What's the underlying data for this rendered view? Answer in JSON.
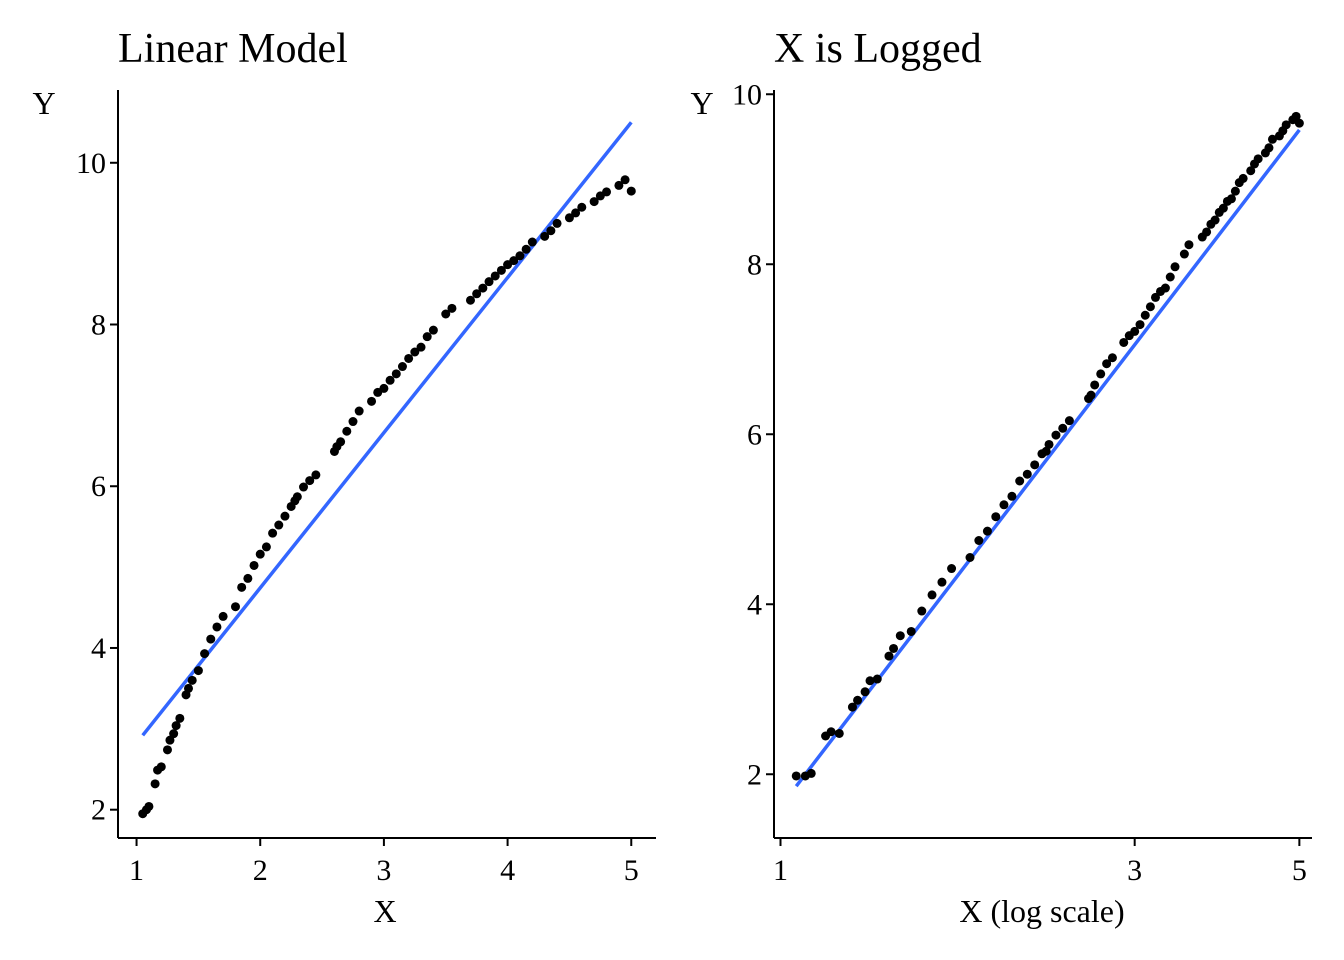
{
  "chart_data": [
    {
      "type": "scatter",
      "title": "Linear Model",
      "xlabel": "X",
      "ylabel": "Y",
      "x_scale": "linear",
      "xlim": [
        0.85,
        5.2
      ],
      "ylim": [
        1.65,
        10.9
      ],
      "x_ticks": [
        1,
        2,
        3,
        4,
        5
      ],
      "x_tick_labels": [
        "1",
        "2",
        "3",
        "4",
        "5"
      ],
      "y_ticks": [
        2,
        4,
        6,
        8,
        10
      ],
      "y_tick_labels": [
        "2",
        "4",
        "6",
        "8",
        "10"
      ],
      "grid": false,
      "legend": "none",
      "point_color": "#000000",
      "line_color": "#3366FF",
      "points": {
        "x": [
          1.05,
          1.08,
          1.1,
          1.15,
          1.17,
          1.2,
          1.25,
          1.27,
          1.3,
          1.32,
          1.35,
          1.4,
          1.42,
          1.45,
          1.5,
          1.55,
          1.6,
          1.65,
          1.7,
          1.8,
          1.85,
          1.9,
          1.95,
          2.0,
          2.05,
          2.1,
          2.15,
          2.2,
          2.25,
          2.28,
          2.3,
          2.35,
          2.4,
          2.45,
          2.6,
          2.62,
          2.65,
          2.7,
          2.75,
          2.8,
          2.9,
          2.95,
          3.0,
          3.05,
          3.1,
          3.15,
          3.2,
          3.25,
          3.3,
          3.35,
          3.4,
          3.5,
          3.55,
          3.7,
          3.75,
          3.8,
          3.85,
          3.9,
          3.95,
          4.0,
          4.05,
          4.1,
          4.15,
          4.2,
          4.3,
          4.35,
          4.4,
          4.5,
          4.55,
          4.6,
          4.7,
          4.75,
          4.8,
          4.9,
          4.95,
          5.0
        ],
        "y": [
          1.95,
          2.0,
          2.04,
          2.32,
          2.49,
          2.53,
          2.74,
          2.86,
          2.94,
          3.04,
          3.13,
          3.42,
          3.5,
          3.6,
          3.72,
          3.93,
          4.11,
          4.26,
          4.39,
          4.51,
          4.75,
          4.86,
          5.02,
          5.16,
          5.25,
          5.42,
          5.52,
          5.63,
          5.75,
          5.82,
          5.87,
          5.99,
          6.07,
          6.14,
          6.43,
          6.49,
          6.55,
          6.68,
          6.8,
          6.93,
          7.05,
          7.16,
          7.21,
          7.31,
          7.39,
          7.48,
          7.58,
          7.66,
          7.72,
          7.85,
          7.93,
          8.13,
          8.2,
          8.3,
          8.38,
          8.45,
          8.53,
          8.6,
          8.67,
          8.74,
          8.79,
          8.85,
          8.93,
          9.02,
          9.09,
          9.16,
          9.25,
          9.32,
          9.38,
          9.45,
          9.52,
          9.59,
          9.64,
          9.72,
          9.79,
          9.65
        ]
      },
      "fit_line": {
        "x": [
          1.05,
          5.0
        ],
        "y": [
          2.92,
          10.5
        ]
      }
    },
    {
      "type": "scatter",
      "title": "X is Logged",
      "xlabel": "X (log scale)",
      "ylabel": "Y",
      "x_scale": "log",
      "xlim": [
        0.98,
        5.2
      ],
      "ylim": [
        1.25,
        10.05
      ],
      "x_ticks": [
        1,
        3,
        5
      ],
      "x_tick_labels": [
        "1",
        "3",
        "5"
      ],
      "y_ticks": [
        2,
        4,
        6,
        8,
        10
      ],
      "y_tick_labels": [
        "2",
        "4",
        "6",
        "8",
        "10"
      ],
      "grid": false,
      "legend": "none",
      "point_color": "#000000",
      "line_color": "#3366FF",
      "points": {
        "x": [
          1.05,
          1.08,
          1.1,
          1.15,
          1.17,
          1.2,
          1.25,
          1.27,
          1.3,
          1.32,
          1.35,
          1.4,
          1.42,
          1.45,
          1.5,
          1.55,
          1.6,
          1.65,
          1.7,
          1.8,
          1.85,
          1.9,
          1.95,
          2.0,
          2.05,
          2.1,
          2.15,
          2.2,
          2.25,
          2.28,
          2.3,
          2.35,
          2.4,
          2.45,
          2.6,
          2.62,
          2.65,
          2.7,
          2.75,
          2.8,
          2.9,
          2.95,
          3.0,
          3.05,
          3.1,
          3.15,
          3.2,
          3.25,
          3.3,
          3.35,
          3.4,
          3.5,
          3.55,
          3.7,
          3.75,
          3.8,
          3.85,
          3.9,
          3.95,
          4.0,
          4.05,
          4.1,
          4.15,
          4.2,
          4.3,
          4.35,
          4.4,
          4.5,
          4.55,
          4.6,
          4.7,
          4.75,
          4.8,
          4.9,
          4.95,
          5.0
        ],
        "y": [
          1.98,
          1.98,
          2.01,
          2.45,
          2.5,
          2.48,
          2.79,
          2.87,
          2.97,
          3.1,
          3.12,
          3.39,
          3.48,
          3.63,
          3.68,
          3.92,
          4.11,
          4.26,
          4.42,
          4.55,
          4.75,
          4.86,
          5.03,
          5.17,
          5.27,
          5.45,
          5.53,
          5.64,
          5.77,
          5.8,
          5.88,
          5.99,
          6.07,
          6.16,
          6.42,
          6.46,
          6.58,
          6.71,
          6.83,
          6.9,
          7.08,
          7.16,
          7.21,
          7.29,
          7.4,
          7.5,
          7.61,
          7.68,
          7.72,
          7.85,
          7.97,
          8.12,
          8.23,
          8.32,
          8.38,
          8.47,
          8.52,
          8.61,
          8.66,
          8.74,
          8.77,
          8.86,
          8.96,
          9.01,
          9.1,
          9.18,
          9.24,
          9.31,
          9.37,
          9.47,
          9.51,
          9.57,
          9.64,
          9.7,
          9.74,
          9.66
        ]
      },
      "fit_line": {
        "x": [
          1.05,
          5.0
        ],
        "y": [
          1.86,
          9.58
        ]
      }
    }
  ]
}
